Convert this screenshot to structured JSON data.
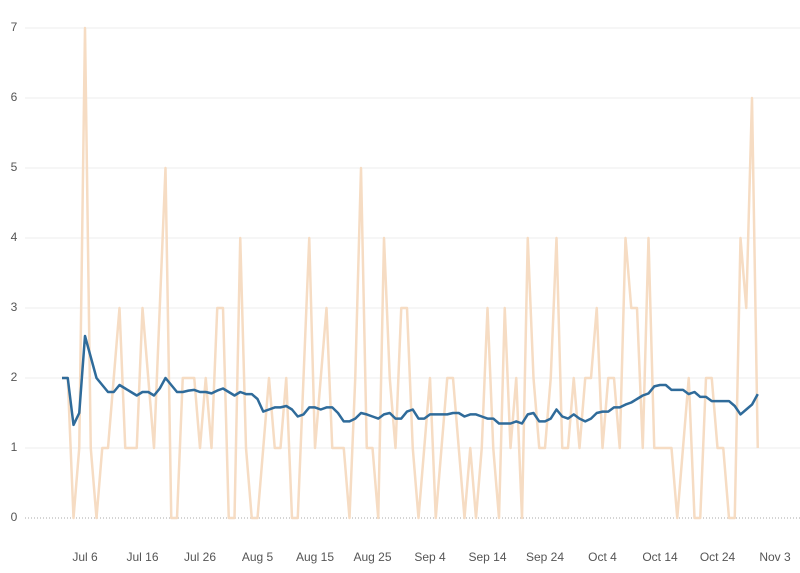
{
  "chart_data": {
    "type": "line",
    "categories": [
      null,
      null,
      null,
      null,
      "Jul 6",
      null,
      null,
      null,
      null,
      null,
      null,
      null,
      null,
      null,
      "Jul 16",
      null,
      null,
      null,
      null,
      null,
      null,
      null,
      null,
      null,
      "Jul 26",
      null,
      null,
      null,
      null,
      null,
      null,
      null,
      null,
      null,
      "Aug 5",
      null,
      null,
      null,
      null,
      null,
      null,
      null,
      null,
      null,
      "Aug 15",
      null,
      null,
      null,
      null,
      null,
      null,
      null,
      null,
      null,
      "Aug 25",
      null,
      null,
      null,
      null,
      null,
      null,
      null,
      null,
      null,
      "Sep 4",
      null,
      null,
      null,
      null,
      null,
      null,
      null,
      null,
      null,
      "Sep 14",
      null,
      null,
      null,
      null,
      null,
      null,
      null,
      null,
      null,
      "Sep 24",
      null,
      null,
      null,
      null,
      null,
      null,
      null,
      null,
      null,
      "Oct 4",
      null,
      null,
      null,
      null,
      null,
      null,
      null,
      null,
      null,
      "Oct 14",
      null,
      null,
      null,
      null,
      null,
      null,
      null,
      null,
      null,
      "Oct 24",
      null,
      null,
      null,
      null,
      null,
      null,
      null,
      null,
      null,
      "Nov 3"
    ],
    "series": [
      {
        "color": "#f6dcc3",
        "width": 2.5,
        "values": [
          2,
          2,
          0,
          1,
          7,
          1,
          0,
          1,
          1,
          2,
          3,
          1,
          1,
          1,
          3,
          2,
          1,
          3,
          5,
          0,
          0,
          2,
          2,
          2,
          1,
          2,
          1,
          3,
          3,
          0,
          0,
          4,
          1,
          0,
          0,
          1,
          2,
          1,
          1,
          2,
          0,
          0,
          2,
          4,
          1,
          2,
          3,
          1,
          1,
          1,
          0,
          2,
          5,
          1,
          1,
          0,
          4,
          2,
          1,
          3,
          3,
          1,
          0,
          1,
          2,
          0,
          1,
          2,
          2,
          1,
          0,
          1,
          0,
          1,
          3,
          1,
          0,
          3,
          1,
          2,
          0,
          4,
          2,
          1,
          1,
          2,
          4,
          1,
          1,
          2,
          1,
          2,
          2,
          3,
          1,
          2,
          2,
          1,
          4,
          3,
          3,
          1,
          4,
          1,
          1,
          1,
          1,
          0,
          1,
          2,
          0,
          0,
          2,
          2,
          1,
          1,
          0,
          0,
          4,
          3,
          6,
          1,
          null,
          null,
          null
        ]
      },
      {
        "color": "#2f6b9a",
        "width": 2.5,
        "values": [
          2,
          2,
          1.33,
          1.5,
          2.6,
          2.3,
          2,
          1.9,
          1.8,
          1.8,
          1.9,
          1.85,
          1.8,
          1.75,
          1.8,
          1.8,
          1.75,
          1.85,
          2.0,
          1.9,
          1.8,
          1.8,
          1.82,
          1.83,
          1.8,
          1.8,
          1.78,
          1.82,
          1.85,
          1.8,
          1.75,
          1.8,
          1.77,
          1.77,
          1.7,
          1.52,
          1.55,
          1.58,
          1.58,
          1.6,
          1.55,
          1.45,
          1.48,
          1.58,
          1.58,
          1.55,
          1.58,
          1.58,
          1.5,
          1.38,
          1.38,
          1.42,
          1.5,
          1.48,
          1.45,
          1.42,
          1.48,
          1.5,
          1.42,
          1.42,
          1.52,
          1.55,
          1.42,
          1.42,
          1.48,
          1.48,
          1.48,
          1.48,
          1.5,
          1.5,
          1.45,
          1.48,
          1.48,
          1.45,
          1.42,
          1.42,
          1.35,
          1.35,
          1.35,
          1.38,
          1.35,
          1.48,
          1.5,
          1.38,
          1.38,
          1.42,
          1.55,
          1.45,
          1.42,
          1.48,
          1.42,
          1.38,
          1.42,
          1.5,
          1.52,
          1.52,
          1.58,
          1.58,
          1.62,
          1.65,
          1.7,
          1.75,
          1.78,
          1.88,
          1.9,
          1.9,
          1.83,
          1.83,
          1.83,
          1.77,
          1.8,
          1.73,
          1.73,
          1.67,
          1.67,
          1.67,
          1.67,
          1.6,
          1.48,
          1.55,
          1.62,
          1.77,
          null,
          null,
          null
        ]
      }
    ],
    "ylim": [
      0,
      7
    ],
    "yticks": [
      0,
      1,
      2,
      3,
      4,
      5,
      6,
      7
    ],
    "grid": true
  }
}
